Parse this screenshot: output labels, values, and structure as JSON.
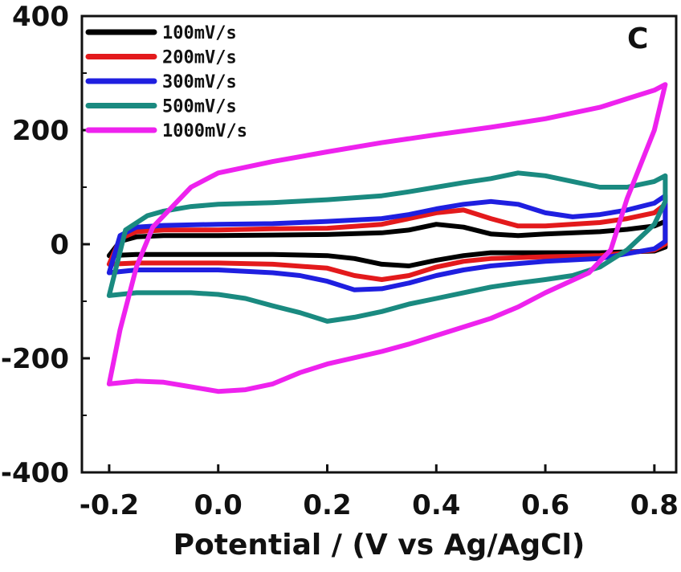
{
  "chart_data": {
    "type": "line",
    "panel_label": "C",
    "xlabel": "Potential / (V vs Ag/AgCl)",
    "ylabel": "",
    "xlim": [
      -0.25,
      0.84
    ],
    "ylim": [
      -400,
      400
    ],
    "x_ticks": [
      {
        "value": -0.2,
        "label": "-0.2"
      },
      {
        "value": 0.0,
        "label": "0.0"
      },
      {
        "value": 0.2,
        "label": "0.2"
      },
      {
        "value": 0.4,
        "label": "0.4"
      },
      {
        "value": 0.6,
        "label": "0.6"
      },
      {
        "value": 0.8,
        "label": "0.8"
      }
    ],
    "y_ticks": [
      {
        "value": 400,
        "label": "400"
      },
      {
        "value": 200,
        "label": "200"
      },
      {
        "value": 0,
        "label": "0"
      },
      {
        "value": -200,
        "label": "-200"
      },
      {
        "value": -400,
        "label": "-400"
      }
    ],
    "legend_position": "top-left",
    "grid": false,
    "series": [
      {
        "name": "100mV/s",
        "color": "#000000",
        "points": [
          [
            -0.2,
            -20
          ],
          [
            -0.18,
            5
          ],
          [
            -0.15,
            13
          ],
          [
            -0.1,
            15
          ],
          [
            0,
            15
          ],
          [
            0.1,
            16
          ],
          [
            0.2,
            17
          ],
          [
            0.3,
            20
          ],
          [
            0.35,
            25
          ],
          [
            0.4,
            35
          ],
          [
            0.45,
            30
          ],
          [
            0.5,
            18
          ],
          [
            0.55,
            15
          ],
          [
            0.6,
            18
          ],
          [
            0.7,
            22
          ],
          [
            0.75,
            26
          ],
          [
            0.8,
            32
          ],
          [
            0.82,
            40
          ],
          [
            0.82,
            -5
          ],
          [
            0.8,
            -12
          ],
          [
            0.7,
            -15
          ],
          [
            0.6,
            -15
          ],
          [
            0.5,
            -15
          ],
          [
            0.45,
            -20
          ],
          [
            0.4,
            -28
          ],
          [
            0.35,
            -38
          ],
          [
            0.3,
            -35
          ],
          [
            0.25,
            -25
          ],
          [
            0.2,
            -20
          ],
          [
            0.1,
            -18
          ],
          [
            0,
            -18
          ],
          [
            -0.1,
            -18
          ],
          [
            -0.15,
            -18
          ],
          [
            -0.2,
            -20
          ]
        ]
      },
      {
        "name": "200mV/s",
        "color": "#e31a1c",
        "points": [
          [
            -0.2,
            -35
          ],
          [
            -0.18,
            10
          ],
          [
            -0.15,
            22
          ],
          [
            -0.1,
            25
          ],
          [
            0,
            25
          ],
          [
            0.1,
            27
          ],
          [
            0.2,
            28
          ],
          [
            0.3,
            35
          ],
          [
            0.35,
            45
          ],
          [
            0.4,
            55
          ],
          [
            0.45,
            60
          ],
          [
            0.5,
            45
          ],
          [
            0.55,
            32
          ],
          [
            0.6,
            32
          ],
          [
            0.7,
            38
          ],
          [
            0.75,
            45
          ],
          [
            0.8,
            55
          ],
          [
            0.82,
            70
          ],
          [
            0.82,
            0
          ],
          [
            0.8,
            -10
          ],
          [
            0.7,
            -20
          ],
          [
            0.6,
            -22
          ],
          [
            0.5,
            -25
          ],
          [
            0.45,
            -30
          ],
          [
            0.4,
            -40
          ],
          [
            0.35,
            -55
          ],
          [
            0.3,
            -62
          ],
          [
            0.25,
            -55
          ],
          [
            0.2,
            -42
          ],
          [
            0.1,
            -35
          ],
          [
            0,
            -33
          ],
          [
            -0.1,
            -33
          ],
          [
            -0.15,
            -33
          ],
          [
            -0.2,
            -35
          ]
        ]
      },
      {
        "name": "300mV/s",
        "color": "#1f1fe0",
        "points": [
          [
            -0.2,
            -50
          ],
          [
            -0.18,
            15
          ],
          [
            -0.15,
            30
          ],
          [
            -0.1,
            33
          ],
          [
            0,
            35
          ],
          [
            0.1,
            36
          ],
          [
            0.2,
            40
          ],
          [
            0.3,
            45
          ],
          [
            0.35,
            52
          ],
          [
            0.4,
            62
          ],
          [
            0.45,
            70
          ],
          [
            0.5,
            75
          ],
          [
            0.55,
            70
          ],
          [
            0.6,
            55
          ],
          [
            0.65,
            48
          ],
          [
            0.7,
            52
          ],
          [
            0.75,
            60
          ],
          [
            0.8,
            72
          ],
          [
            0.82,
            85
          ],
          [
            0.82,
            5
          ],
          [
            0.8,
            -8
          ],
          [
            0.7,
            -25
          ],
          [
            0.6,
            -30
          ],
          [
            0.5,
            -38
          ],
          [
            0.45,
            -45
          ],
          [
            0.4,
            -55
          ],
          [
            0.35,
            -68
          ],
          [
            0.3,
            -78
          ],
          [
            0.25,
            -80
          ],
          [
            0.2,
            -65
          ],
          [
            0.15,
            -55
          ],
          [
            0.1,
            -50
          ],
          [
            0,
            -45
          ],
          [
            -0.1,
            -45
          ],
          [
            -0.15,
            -45
          ],
          [
            -0.2,
            -50
          ]
        ]
      },
      {
        "name": "500mV/s",
        "color": "#1a8a80",
        "points": [
          [
            -0.2,
            -90
          ],
          [
            -0.17,
            25
          ],
          [
            -0.13,
            50
          ],
          [
            -0.1,
            58
          ],
          [
            -0.05,
            66
          ],
          [
            0,
            70
          ],
          [
            0.1,
            73
          ],
          [
            0.2,
            78
          ],
          [
            0.3,
            85
          ],
          [
            0.35,
            92
          ],
          [
            0.4,
            100
          ],
          [
            0.45,
            108
          ],
          [
            0.5,
            115
          ],
          [
            0.55,
            125
          ],
          [
            0.6,
            120
          ],
          [
            0.65,
            110
          ],
          [
            0.7,
            100
          ],
          [
            0.75,
            100
          ],
          [
            0.8,
            110
          ],
          [
            0.82,
            120
          ],
          [
            0.82,
            75
          ],
          [
            0.8,
            35
          ],
          [
            0.75,
            -10
          ],
          [
            0.7,
            -40
          ],
          [
            0.65,
            -55
          ],
          [
            0.6,
            -62
          ],
          [
            0.55,
            -68
          ],
          [
            0.5,
            -75
          ],
          [
            0.45,
            -85
          ],
          [
            0.4,
            -95
          ],
          [
            0.35,
            -105
          ],
          [
            0.3,
            -118
          ],
          [
            0.25,
            -128
          ],
          [
            0.2,
            -135
          ],
          [
            0.15,
            -120
          ],
          [
            0.1,
            -108
          ],
          [
            0.05,
            -95
          ],
          [
            0,
            -88
          ],
          [
            -0.05,
            -85
          ],
          [
            -0.1,
            -85
          ],
          [
            -0.15,
            -85
          ],
          [
            -0.2,
            -90
          ]
        ]
      },
      {
        "name": "1000mV/s",
        "color": "#ee22ee",
        "points": [
          [
            -0.2,
            -245
          ],
          [
            -0.18,
            -150
          ],
          [
            -0.15,
            -40
          ],
          [
            -0.12,
            30
          ],
          [
            -0.08,
            70
          ],
          [
            -0.05,
            100
          ],
          [
            0,
            125
          ],
          [
            0.05,
            135
          ],
          [
            0.1,
            145
          ],
          [
            0.2,
            162
          ],
          [
            0.3,
            178
          ],
          [
            0.4,
            192
          ],
          [
            0.5,
            205
          ],
          [
            0.6,
            220
          ],
          [
            0.7,
            240
          ],
          [
            0.75,
            255
          ],
          [
            0.8,
            270
          ],
          [
            0.82,
            280
          ],
          [
            0.8,
            200
          ],
          [
            0.75,
            80
          ],
          [
            0.72,
            -10
          ],
          [
            0.68,
            -50
          ],
          [
            0.6,
            -85
          ],
          [
            0.55,
            -110
          ],
          [
            0.5,
            -130
          ],
          [
            0.45,
            -145
          ],
          [
            0.4,
            -160
          ],
          [
            0.35,
            -175
          ],
          [
            0.3,
            -188
          ],
          [
            0.2,
            -210
          ],
          [
            0.15,
            -225
          ],
          [
            0.1,
            -245
          ],
          [
            0.05,
            -255
          ],
          [
            0,
            -258
          ],
          [
            -0.05,
            -250
          ],
          [
            -0.1,
            -242
          ],
          [
            -0.15,
            -240
          ],
          [
            -0.2,
            -245
          ]
        ]
      }
    ]
  }
}
